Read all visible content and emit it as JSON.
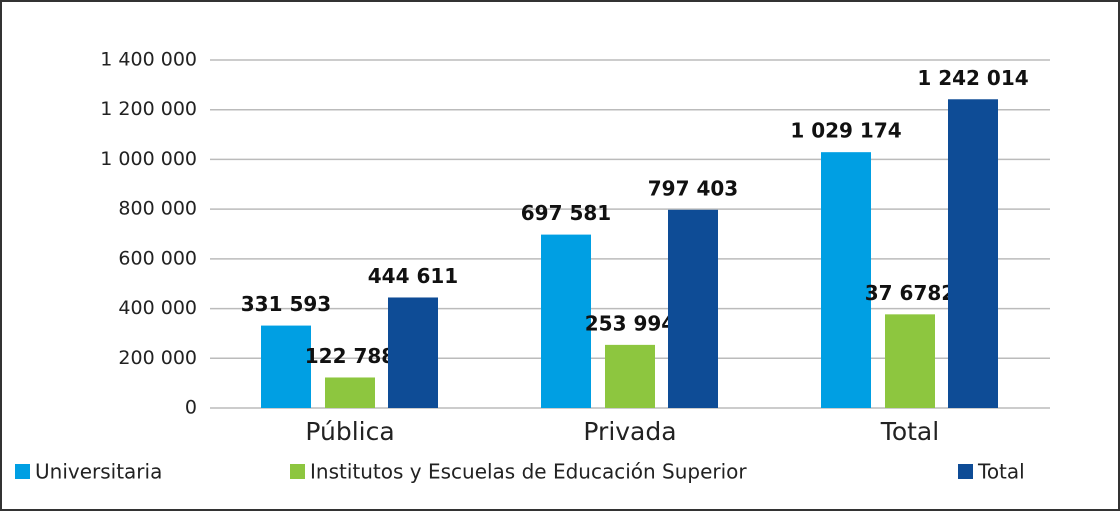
{
  "chart_data": {
    "type": "bar",
    "categories": [
      "Pública",
      "Privada",
      "Total"
    ],
    "series": [
      {
        "name": "Universitaria",
        "color": "#009fe3",
        "values": [
          331593,
          697581,
          1029174
        ],
        "value_labels": [
          "331 593",
          "697 581",
          "1 029 174"
        ]
      },
      {
        "name": "Institutos y Escuelas de Educación Superior",
        "color": "#8dc63f",
        "values": [
          122788,
          253994,
          376782
        ],
        "value_labels": [
          "122 788",
          "253 994",
          "37 6782"
        ]
      },
      {
        "name": "Total",
        "color": "#0e4c96",
        "values": [
          444611,
          797403,
          1242014
        ],
        "value_labels": [
          "444 611",
          "797 403",
          "1 242 014"
        ]
      }
    ],
    "ylim": [
      0,
      1400000
    ],
    "yticks": [
      0,
      {
        "value": 200000,
        "label": "200 000"
      },
      {
        "value": 400000,
        "label": "400 000"
      },
      {
        "value": 600000,
        "label": "600 000"
      },
      {
        "value": 800000,
        "label": "800 000"
      },
      {
        "value": 1000000,
        "label": "1 000 000"
      },
      {
        "value": 1200000,
        "label": "1 200 000"
      },
      {
        "value": 1400000,
        "label": "1 400 000"
      }
    ],
    "grid": true,
    "legend": "bottom"
  }
}
